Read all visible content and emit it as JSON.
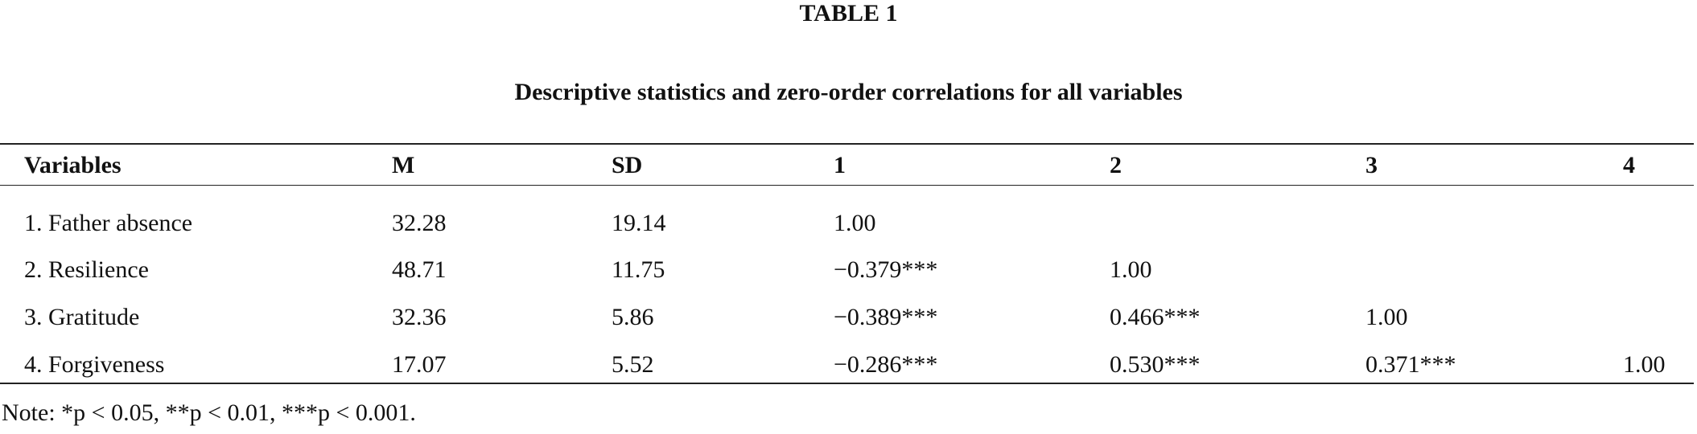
{
  "header": {
    "label": "TABLE 1",
    "title": "Descriptive statistics and zero-order correlations for all variables"
  },
  "table": {
    "columns": [
      "Variables",
      "M",
      "SD",
      "1",
      "2",
      "3",
      "4"
    ],
    "rows": [
      [
        "1. Father absence",
        "32.28",
        "19.14",
        "1.00"
      ],
      [
        "2. Resilience",
        "48.71",
        "11.75",
        "−0.379***",
        "1.00"
      ],
      [
        "3. Gratitude",
        "32.36",
        "5.86",
        "−0.389***",
        "0.466***",
        "1.00"
      ],
      [
        "4. Forgiveness",
        "17.07",
        "5.52",
        "−0.286***",
        "0.530***",
        "0.371***",
        "1.00"
      ]
    ]
  },
  "note": "Note: *p < 0.05, **p < 0.01, ***p < 0.001."
}
